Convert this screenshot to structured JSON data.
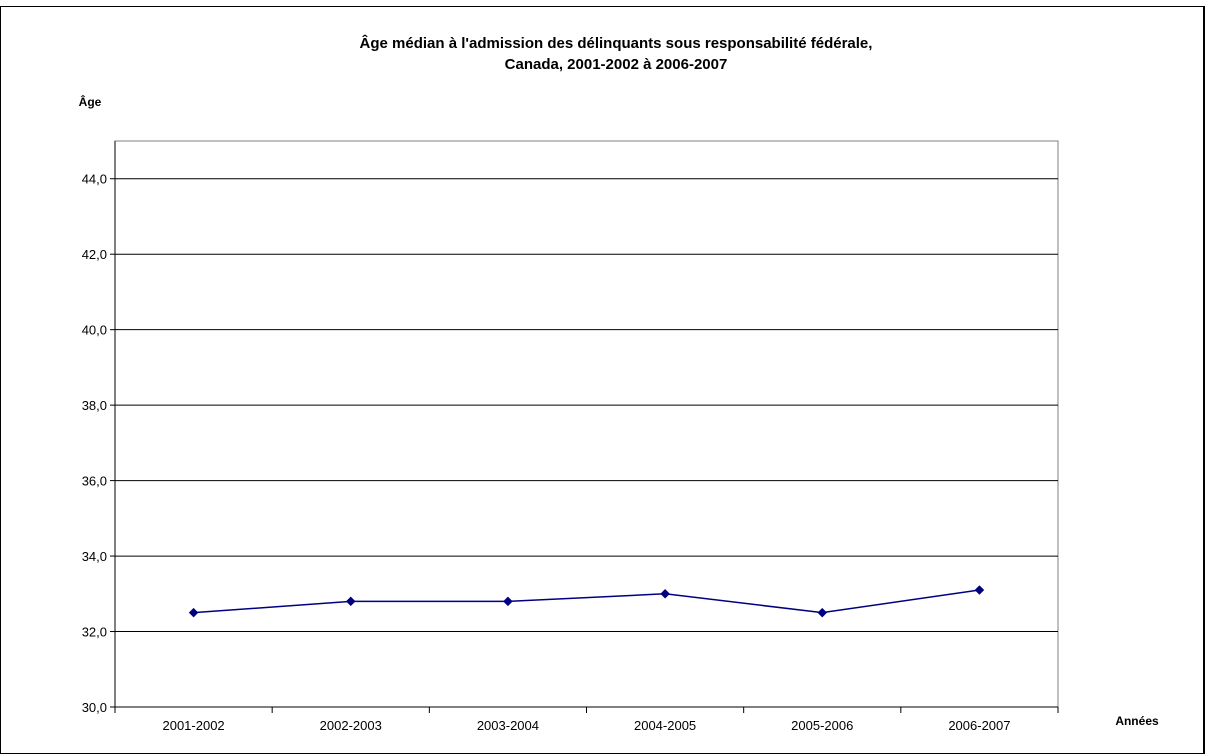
{
  "chart_data": {
    "type": "line",
    "title": [
      "Âge médian à l'admission des délinquants sous responsabilité fédérale,",
      "Canada, 2001-2002 à 2006-2007"
    ],
    "ylabel": "Âge",
    "xlabel": "Années",
    "categories": [
      "2001-2002",
      "2002-2003",
      "2003-2004",
      "2004-2005",
      "2005-2006",
      "2006-2007"
    ],
    "series": [
      {
        "values": [
          32.5,
          32.8,
          32.8,
          33.0,
          32.5,
          33.1
        ],
        "color": "#000080",
        "marker": "diamond"
      }
    ],
    "ylim": [
      30,
      45
    ],
    "yticks": [
      30,
      32,
      34,
      36,
      38,
      40,
      42,
      44
    ],
    "ytick_labels": [
      "30,0",
      "32,0",
      "34,0",
      "36,0",
      "38,0",
      "40,0",
      "42,0",
      "44,0"
    ],
    "grid": true,
    "legend": "none"
  }
}
